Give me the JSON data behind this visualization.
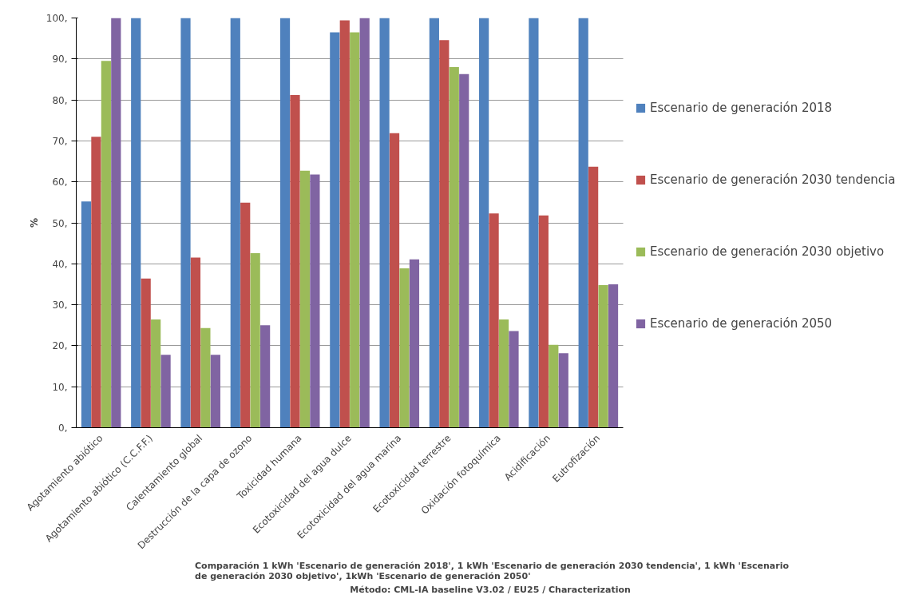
{
  "chart_data": {
    "type": "bar",
    "ylabel": "%",
    "categories": [
      "Agotamiento abiótico",
      "Agotamiento abiótico (C.C.F.F.)",
      "Calentamiento global",
      "Destrucción de la capa de ozono",
      "Toxicidad humana",
      "Ecotoxicidad del agua dulce",
      "Ecotoxicidad del agua marina",
      "Ecotoxicidad terrestre",
      "Oxidación fotoquímica",
      "Acidificación",
      "Eutrofización"
    ],
    "series": [
      {
        "name": "Escenario de generación 2018",
        "color": "#4f81bd",
        "values": [
          55.2,
          100,
          100,
          100,
          100,
          96.5,
          100,
          100,
          100,
          100,
          100
        ]
      },
      {
        "name": "Escenario de generación 2030 tendencia",
        "color": "#c0504d",
        "values": [
          71.0,
          36.4,
          41.5,
          54.9,
          81.2,
          99.4,
          71.9,
          94.6,
          52.3,
          51.8,
          63.7
        ]
      },
      {
        "name": "Escenario de generación 2030 objetivo",
        "color": "#9bbb59",
        "values": [
          89.5,
          26.4,
          24.3,
          42.6,
          62.7,
          96.5,
          38.9,
          88.0,
          26.4,
          20.2,
          34.8
        ]
      },
      {
        "name": "Escenario de generación 2050",
        "color": "#8064a2",
        "values": [
          100,
          17.8,
          17.8,
          25.0,
          61.8,
          100,
          41.1,
          86.3,
          23.6,
          18.2,
          35.0
        ]
      }
    ],
    "ylim": [
      0,
      100
    ],
    "yticks": [
      {
        "value": 0,
        "label": "0,"
      },
      {
        "value": 10,
        "label": "10,"
      },
      {
        "value": 20,
        "label": "20,"
      },
      {
        "value": 30,
        "label": "30,"
      },
      {
        "value": 40,
        "label": "40,"
      },
      {
        "value": 50,
        "label": "50,"
      },
      {
        "value": 60,
        "label": "60,"
      },
      {
        "value": 70,
        "label": "70,"
      },
      {
        "value": 80,
        "label": "80,"
      },
      {
        "value": 90,
        "label": "90,"
      },
      {
        "value": 100,
        "label": "100,"
      }
    ],
    "grid": "y",
    "legend": "right",
    "annotations": [
      "Comparación 1 kWh 'Escenario de generación 2018', 1 kWh 'Escenario de generación 2030 tendencia', 1 kWh 'Escenario de generación 2030 objetivo', 1kWh 'Escenario de generación 2050'",
      "Método:  CML-IA baseline V3.02 / EU25 / Characterization"
    ]
  }
}
